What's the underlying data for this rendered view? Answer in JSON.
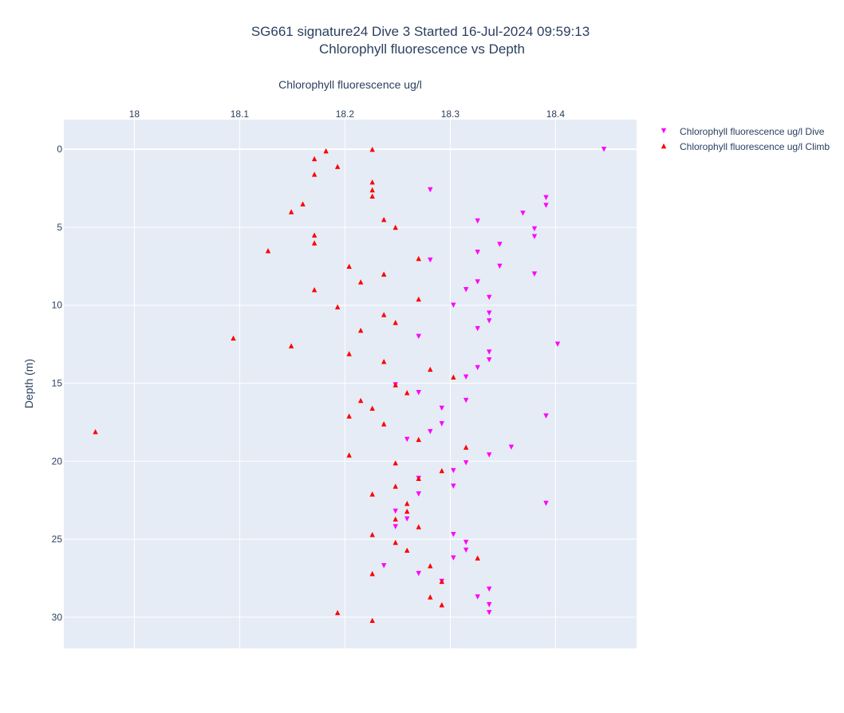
{
  "chart_data": {
    "type": "scatter",
    "title": "SG661 signature24 Dive 3 Started 16-Jul-2024 09:59:13",
    "subtitle": "Chlorophyll fluorescence vs Depth",
    "xlabel": "Chlorophyll fluorescence ug/l",
    "ylabel": "Depth (m)",
    "xlim": [
      17.933,
      18.477
    ],
    "ylim": [
      -1.9,
      32.0
    ],
    "y_reversed": true,
    "x_axis_position": "top",
    "x_ticks": [
      18,
      18.1,
      18.2,
      18.3,
      18.4
    ],
    "x_tick_labels": [
      "18",
      "18.1",
      "18.2",
      "18.3",
      "18.4"
    ],
    "y_ticks": [
      0,
      5,
      10,
      15,
      20,
      25,
      30
    ],
    "y_tick_labels": [
      "0",
      "5",
      "10",
      "15",
      "20",
      "25",
      "30"
    ],
    "grid": true,
    "legend_position": "top-right",
    "colors": {
      "plot_bg": "#e5ecf6",
      "grid": "#ffffff",
      "dive": "#ff00ff",
      "climb": "#ff0000"
    },
    "series": [
      {
        "name": "Chlorophyll fluorescence ug/l Dive",
        "marker": "triangle-down",
        "color": "#ff00ff",
        "points": [
          [
            18.446,
            0.0
          ],
          [
            18.281,
            2.6
          ],
          [
            18.391,
            3.1
          ],
          [
            18.391,
            3.6
          ],
          [
            18.369,
            4.1
          ],
          [
            18.326,
            4.6
          ],
          [
            18.38,
            5.1
          ],
          [
            18.38,
            5.6
          ],
          [
            18.347,
            6.1
          ],
          [
            18.326,
            6.6
          ],
          [
            18.281,
            7.1
          ],
          [
            18.347,
            7.5
          ],
          [
            18.38,
            8.0
          ],
          [
            18.326,
            8.5
          ],
          [
            18.315,
            9.0
          ],
          [
            18.337,
            9.5
          ],
          [
            18.303,
            10.0
          ],
          [
            18.337,
            10.5
          ],
          [
            18.337,
            11.0
          ],
          [
            18.326,
            11.5
          ],
          [
            18.27,
            12.0
          ],
          [
            18.402,
            12.5
          ],
          [
            18.337,
            13.0
          ],
          [
            18.337,
            13.5
          ],
          [
            18.326,
            14.0
          ],
          [
            18.315,
            14.6
          ],
          [
            18.248,
            15.1
          ],
          [
            18.27,
            15.6
          ],
          [
            18.315,
            16.1
          ],
          [
            18.292,
            16.6
          ],
          [
            18.391,
            17.1
          ],
          [
            18.292,
            17.6
          ],
          [
            18.281,
            18.1
          ],
          [
            18.259,
            18.6
          ],
          [
            18.358,
            19.1
          ],
          [
            18.337,
            19.6
          ],
          [
            18.315,
            20.1
          ],
          [
            18.303,
            20.6
          ],
          [
            18.27,
            21.1
          ],
          [
            18.303,
            21.6
          ],
          [
            18.27,
            22.1
          ],
          [
            18.391,
            22.7
          ],
          [
            18.248,
            23.2
          ],
          [
            18.259,
            23.7
          ],
          [
            18.248,
            24.2
          ],
          [
            18.303,
            24.7
          ],
          [
            18.315,
            25.2
          ],
          [
            18.315,
            25.7
          ],
          [
            18.303,
            26.2
          ],
          [
            18.237,
            26.7
          ],
          [
            18.27,
            27.2
          ],
          [
            18.292,
            27.7
          ],
          [
            18.337,
            28.2
          ],
          [
            18.326,
            28.7
          ],
          [
            18.337,
            29.2
          ],
          [
            18.337,
            29.7
          ]
        ]
      },
      {
        "name": "Chlorophyll fluorescence ug/l Climb",
        "marker": "triangle-up",
        "color": "#ff0000",
        "points": [
          [
            18.226,
            0.0
          ],
          [
            18.182,
            0.1
          ],
          [
            18.171,
            0.6
          ],
          [
            18.193,
            1.1
          ],
          [
            18.171,
            1.6
          ],
          [
            18.226,
            2.1
          ],
          [
            18.226,
            2.6
          ],
          [
            18.226,
            3.0
          ],
          [
            18.16,
            3.5
          ],
          [
            18.149,
            4.0
          ],
          [
            18.237,
            4.5
          ],
          [
            18.248,
            5.0
          ],
          [
            18.171,
            5.5
          ],
          [
            18.171,
            6.0
          ],
          [
            18.127,
            6.5
          ],
          [
            18.27,
            7.0
          ],
          [
            18.204,
            7.5
          ],
          [
            18.237,
            8.0
          ],
          [
            18.215,
            8.5
          ],
          [
            18.171,
            9.0
          ],
          [
            18.27,
            9.6
          ],
          [
            18.193,
            10.1
          ],
          [
            18.237,
            10.6
          ],
          [
            18.248,
            11.1
          ],
          [
            18.215,
            11.6
          ],
          [
            18.094,
            12.1
          ],
          [
            18.149,
            12.6
          ],
          [
            18.204,
            13.1
          ],
          [
            18.237,
            13.6
          ],
          [
            18.281,
            14.1
          ],
          [
            18.303,
            14.6
          ],
          [
            18.248,
            15.1
          ],
          [
            18.259,
            15.6
          ],
          [
            18.215,
            16.1
          ],
          [
            18.226,
            16.6
          ],
          [
            18.204,
            17.1
          ],
          [
            18.237,
            17.6
          ],
          [
            17.963,
            18.1
          ],
          [
            18.27,
            18.6
          ],
          [
            18.315,
            19.1
          ],
          [
            18.204,
            19.6
          ],
          [
            18.248,
            20.1
          ],
          [
            18.292,
            20.6
          ],
          [
            18.27,
            21.1
          ],
          [
            18.248,
            21.6
          ],
          [
            18.226,
            22.1
          ],
          [
            18.259,
            22.7
          ],
          [
            18.259,
            23.2
          ],
          [
            18.248,
            23.7
          ],
          [
            18.27,
            24.2
          ],
          [
            18.226,
            24.7
          ],
          [
            18.248,
            25.2
          ],
          [
            18.259,
            25.7
          ],
          [
            18.326,
            26.2
          ],
          [
            18.281,
            26.7
          ],
          [
            18.226,
            27.2
          ],
          [
            18.292,
            27.7
          ],
          [
            18.281,
            28.7
          ],
          [
            18.292,
            29.2
          ],
          [
            18.193,
            29.7
          ],
          [
            18.226,
            30.2
          ]
        ]
      }
    ]
  }
}
